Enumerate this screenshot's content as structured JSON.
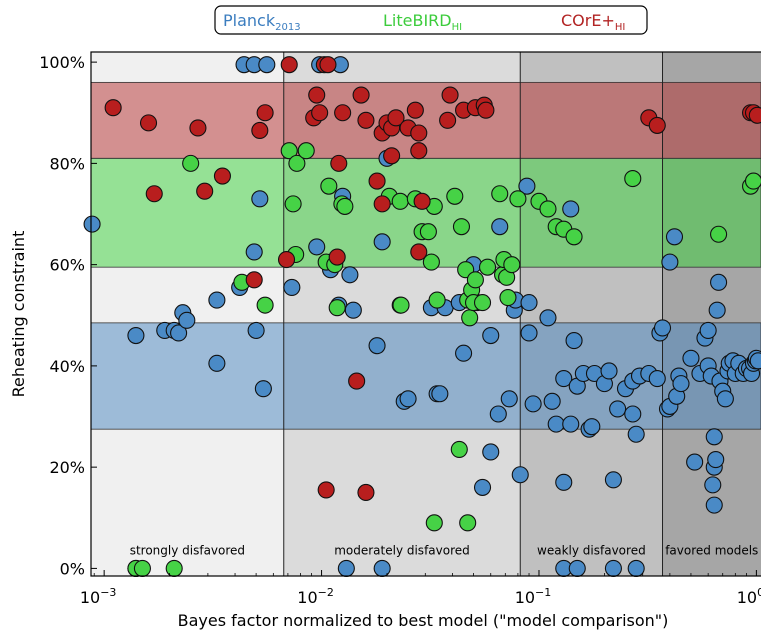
{
  "chart_data": {
    "type": "scatter",
    "x_scale": "log",
    "xlim": [
      0.00087,
      1.05
    ],
    "ylim": [
      -1.5,
      102
    ],
    "xlabel": "Bayes factor normalized to best model (\"model comparison\")",
    "ylabel": "Reheating constraint",
    "x_ticks": [
      {
        "value": 0.001,
        "base": "10",
        "exp": "−3"
      },
      {
        "value": 0.01,
        "base": "10",
        "exp": "−2"
      },
      {
        "value": 0.1,
        "base": "10",
        "exp": "−1"
      },
      {
        "value": 1,
        "base": "10",
        "exp": "0"
      }
    ],
    "y_ticks": [
      {
        "value": 0,
        "label": "0%"
      },
      {
        "value": 20,
        "label": "20%"
      },
      {
        "value": 40,
        "label": "40%"
      },
      {
        "value": 60,
        "label": "60%"
      },
      {
        "value": 80,
        "label": "80%"
      },
      {
        "value": 100,
        "label": "100%"
      }
    ],
    "x_regions": [
      {
        "label": "strongly disfavored",
        "x0": 0.00087,
        "x1": 0.0067,
        "color": "#f0f0f0"
      },
      {
        "label": "moderately disfavored",
        "x0": 0.0067,
        "x1": 0.082,
        "color": "#dbdbdb"
      },
      {
        "label": "weakly disfavored",
        "x0": 0.082,
        "x1": 0.37,
        "color": "#c0c0c0"
      },
      {
        "label": "favored models",
        "x0": 0.37,
        "x1": 1.05,
        "color": "#a6a6a6"
      }
    ],
    "y_bands": [
      {
        "name": "Planck_2013",
        "y0": 27.5,
        "y1": 48.5,
        "color": "#4a86c0",
        "opacity": 0.5
      },
      {
        "name": "LiteBIRD_HI",
        "y0": 59.5,
        "y1": 81,
        "color": "#3ad23a",
        "opacity": 0.5
      },
      {
        "name": "COrE+_HI",
        "y0": 81,
        "y1": 96,
        "color": "#b63030",
        "opacity": 0.5
      }
    ],
    "legend": {
      "position": "top-center",
      "entries": [
        {
          "main": "Planck",
          "sub": "2013",
          "color": "#3b7dbf"
        },
        {
          "main": "LiteBIRD",
          "sub": "HI",
          "color": "#3ccc3c"
        },
        {
          "main": "COrE+",
          "sub": "HI",
          "color": "#b22424"
        }
      ]
    },
    "series": [
      {
        "name": "Planck_2013",
        "color": "#4a8ac6",
        "points": [
          [
            0.00088,
            68
          ],
          [
            0.0014,
            46
          ],
          [
            0.0019,
            47
          ],
          [
            0.0021,
            47
          ],
          [
            0.0022,
            46.5
          ],
          [
            0.0023,
            50.5
          ],
          [
            0.0024,
            49
          ],
          [
            0.0033,
            53
          ],
          [
            0.0033,
            40.5
          ],
          [
            0.0042,
            55.5
          ],
          [
            0.0049,
            62.5
          ],
          [
            0.005,
            47
          ],
          [
            0.0052,
            73
          ],
          [
            0.0054,
            35.5
          ],
          [
            0.0073,
            55.5
          ],
          [
            0.0095,
            63.5
          ],
          [
            0.011,
            59
          ],
          [
            0.012,
            52
          ],
          [
            0.0125,
            73.5
          ],
          [
            0.0135,
            58
          ],
          [
            0.014,
            51
          ],
          [
            0.018,
            44
          ],
          [
            0.019,
            64.5
          ],
          [
            0.02,
            81
          ],
          [
            0.023,
            52
          ],
          [
            0.024,
            33
          ],
          [
            0.025,
            33.5
          ],
          [
            0.032,
            51.5
          ],
          [
            0.034,
            34.5
          ],
          [
            0.035,
            34.5
          ],
          [
            0.037,
            51.5
          ],
          [
            0.043,
            52.5
          ],
          [
            0.045,
            42.5
          ],
          [
            0.05,
            60
          ],
          [
            0.052,
            52.5
          ],
          [
            0.055,
            16
          ],
          [
            0.06,
            46
          ],
          [
            0.06,
            23
          ],
          [
            0.065,
            30.5
          ],
          [
            0.066,
            67.5
          ],
          [
            0.073,
            33.5
          ],
          [
            0.077,
            51
          ],
          [
            0.078,
            53
          ],
          [
            0.082,
            18.5
          ],
          [
            0.088,
            75.5
          ],
          [
            0.09,
            46.5
          ],
          [
            0.09,
            52.5
          ],
          [
            0.094,
            32.5
          ],
          [
            0.11,
            49.5
          ],
          [
            0.115,
            33
          ],
          [
            0.12,
            28.5
          ],
          [
            0.13,
            37.5
          ],
          [
            0.13,
            17
          ],
          [
            0.14,
            71
          ],
          [
            0.14,
            28.5
          ],
          [
            0.145,
            45
          ],
          [
            0.15,
            36
          ],
          [
            0.16,
            38.5
          ],
          [
            0.17,
            27.5
          ],
          [
            0.175,
            28
          ],
          [
            0.18,
            38.5
          ],
          [
            0.2,
            36.5
          ],
          [
            0.21,
            39
          ],
          [
            0.22,
            17.5
          ],
          [
            0.23,
            31.5
          ],
          [
            0.25,
            35.5
          ],
          [
            0.27,
            37
          ],
          [
            0.27,
            30.5
          ],
          [
            0.28,
            26.5
          ],
          [
            0.29,
            38
          ],
          [
            0.32,
            38.5
          ],
          [
            0.35,
            37.5
          ],
          [
            0.36,
            46.5
          ],
          [
            0.37,
            47.5
          ],
          [
            0.39,
            31.5
          ],
          [
            0.4,
            32
          ],
          [
            0.4,
            60.5
          ],
          [
            0.42,
            65.5
          ],
          [
            0.43,
            34
          ],
          [
            0.44,
            38
          ],
          [
            0.45,
            36.5
          ],
          [
            0.5,
            41.5
          ],
          [
            0.52,
            21
          ],
          [
            0.55,
            38.5
          ],
          [
            0.58,
            45.5
          ],
          [
            0.6,
            40
          ],
          [
            0.6,
            47
          ],
          [
            0.62,
            38
          ],
          [
            0.63,
            16.5
          ],
          [
            0.64,
            12.5
          ],
          [
            0.64,
            26
          ],
          [
            0.64,
            20
          ],
          [
            0.65,
            21.5
          ],
          [
            0.66,
            51
          ],
          [
            0.67,
            56.5
          ],
          [
            0.68,
            37
          ],
          [
            0.7,
            35
          ],
          [
            0.72,
            33.5
          ],
          [
            0.74,
            39
          ],
          [
            0.75,
            40.5
          ],
          [
            0.78,
            41
          ],
          [
            0.8,
            38.5
          ],
          [
            0.83,
            40.5
          ],
          [
            0.87,
            38.5
          ],
          [
            0.9,
            39.5
          ],
          [
            0.93,
            39.5
          ],
          [
            0.95,
            38.5
          ],
          [
            0.97,
            40.5
          ],
          [
            0.99,
            41
          ],
          [
            1.0,
            41.5
          ],
          [
            1.02,
            41
          ],
          [
            0.0044,
            99.5
          ],
          [
            0.0049,
            99.5
          ],
          [
            0.0056,
            99.5
          ],
          [
            0.0098,
            99.5
          ],
          [
            0.0122,
            99.5
          ],
          [
            0.0014,
            0
          ],
          [
            0.013,
            0
          ],
          [
            0.019,
            0
          ],
          [
            0.13,
            0
          ],
          [
            0.15,
            0
          ],
          [
            0.22,
            0
          ],
          [
            0.28,
            0
          ]
        ]
      },
      {
        "name": "LiteBIRD_HI",
        "color": "#46d246",
        "points": [
          [
            0.0025,
            80
          ],
          [
            0.0043,
            56.5
          ],
          [
            0.0055,
            52
          ],
          [
            0.0071,
            82.5
          ],
          [
            0.0074,
            72
          ],
          [
            0.0076,
            62
          ],
          [
            0.0077,
            80
          ],
          [
            0.0085,
            82.5
          ],
          [
            0.0105,
            60.5
          ],
          [
            0.0108,
            75.5
          ],
          [
            0.0115,
            60
          ],
          [
            0.0118,
            51.5
          ],
          [
            0.0124,
            72
          ],
          [
            0.0128,
            71.5
          ],
          [
            0.0205,
            73.5
          ],
          [
            0.023,
            72.5
          ],
          [
            0.0232,
            52
          ],
          [
            0.027,
            73
          ],
          [
            0.029,
            66.5
          ],
          [
            0.031,
            66.5
          ],
          [
            0.032,
            60.5
          ],
          [
            0.033,
            71.5
          ],
          [
            0.034,
            53
          ],
          [
            0.041,
            73.5
          ],
          [
            0.044,
            67.5
          ],
          [
            0.046,
            59
          ],
          [
            0.047,
            53
          ],
          [
            0.048,
            49.5
          ],
          [
            0.049,
            55
          ],
          [
            0.05,
            52.5
          ],
          [
            0.051,
            57
          ],
          [
            0.055,
            52.5
          ],
          [
            0.058,
            59.5
          ],
          [
            0.066,
            74
          ],
          [
            0.068,
            58
          ],
          [
            0.069,
            61
          ],
          [
            0.071,
            57.5
          ],
          [
            0.072,
            53.5
          ],
          [
            0.075,
            60
          ],
          [
            0.08,
            73
          ],
          [
            0.1,
            72.5
          ],
          [
            0.11,
            71
          ],
          [
            0.12,
            67.5
          ],
          [
            0.13,
            67
          ],
          [
            0.145,
            65.5
          ],
          [
            0.27,
            77
          ],
          [
            0.67,
            66
          ],
          [
            0.94,
            75.5
          ],
          [
            0.97,
            76.5
          ],
          [
            0.043,
            23.5
          ],
          [
            0.033,
            9
          ],
          [
            0.047,
            9
          ],
          [
            0.0014,
            0
          ],
          [
            0.0015,
            0
          ],
          [
            0.0021,
            0
          ]
        ]
      },
      {
        "name": "COrE+_HI",
        "color": "#b81e1e",
        "points": [
          [
            0.0011,
            91
          ],
          [
            0.0016,
            88
          ],
          [
            0.0017,
            74
          ],
          [
            0.0027,
            87
          ],
          [
            0.0029,
            74.5
          ],
          [
            0.0035,
            77.5
          ],
          [
            0.0049,
            57
          ],
          [
            0.0052,
            86.5
          ],
          [
            0.0055,
            90
          ],
          [
            0.0069,
            61
          ],
          [
            0.0071,
            99.5
          ],
          [
            0.0092,
            89
          ],
          [
            0.0095,
            93.5
          ],
          [
            0.0098,
            90
          ],
          [
            0.0103,
            99.5
          ],
          [
            0.0107,
            99.5
          ],
          [
            0.0118,
            61.5
          ],
          [
            0.012,
            80
          ],
          [
            0.0125,
            90
          ],
          [
            0.0152,
            93.5
          ],
          [
            0.016,
            88.5
          ],
          [
            0.018,
            76.5
          ],
          [
            0.019,
            86
          ],
          [
            0.019,
            72
          ],
          [
            0.02,
            88
          ],
          [
            0.021,
            87
          ],
          [
            0.021,
            81.5
          ],
          [
            0.022,
            89
          ],
          [
            0.025,
            87
          ],
          [
            0.027,
            90.5
          ],
          [
            0.028,
            82.5
          ],
          [
            0.028,
            86
          ],
          [
            0.028,
            62.5
          ],
          [
            0.029,
            72.5
          ],
          [
            0.038,
            88.5
          ],
          [
            0.039,
            93.5
          ],
          [
            0.045,
            90.5
          ],
          [
            0.051,
            91
          ],
          [
            0.056,
            91.5
          ],
          [
            0.057,
            90.5
          ],
          [
            0.32,
            89
          ],
          [
            0.35,
            87.5
          ],
          [
            0.94,
            90
          ],
          [
            0.97,
            90
          ],
          [
            1.01,
            89.5
          ],
          [
            0.0105,
            15.5
          ],
          [
            0.0145,
            37
          ],
          [
            0.016,
            15
          ]
        ]
      }
    ]
  }
}
